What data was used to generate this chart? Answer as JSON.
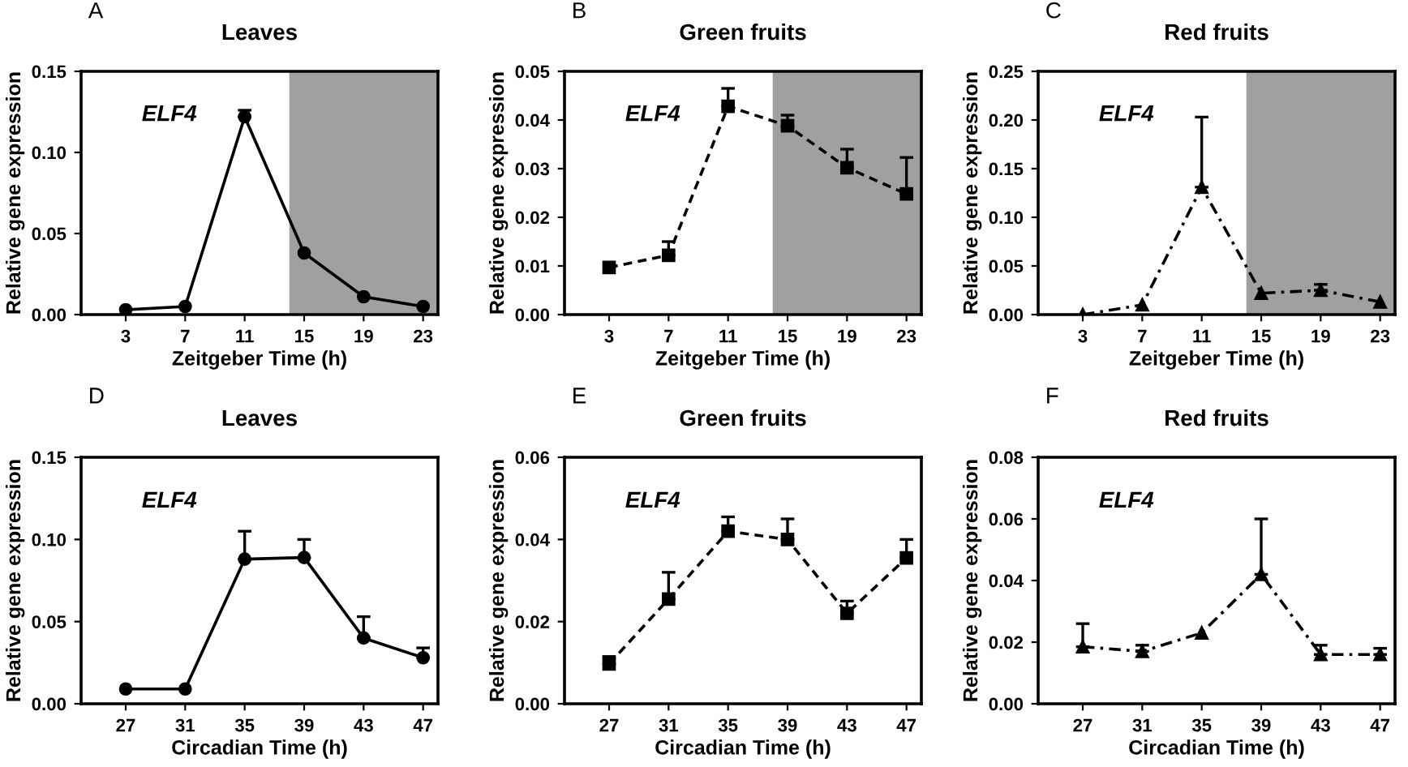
{
  "chart_data": [
    {
      "type": "line",
      "title": "Leaves",
      "xlabel": "Zeitgeber Time (h)",
      "ylabel": "Relative gene expression",
      "annotations": [
        "A",
        "ELF4"
      ],
      "x": [
        3,
        7,
        11,
        15,
        19,
        23
      ],
      "xlim": [
        0,
        24
      ],
      "xticks": [
        3,
        7,
        11,
        15,
        19,
        23
      ],
      "ylim": [
        0,
        0.15
      ],
      "yticks": [
        {
          "value": 0,
          "label": "0.00"
        },
        {
          "value": 0.05,
          "label": "0.05"
        },
        {
          "value": 0.1,
          "label": "0.10"
        },
        {
          "value": 0.15,
          "label": "0.15"
        }
      ],
      "marker": "circle",
      "line_style": "solid",
      "series": [
        {
          "color": "#000000",
          "values": [
            0.003,
            0.005,
            0.122,
            0.038,
            0.011,
            0.005
          ],
          "errors": [
            null,
            null,
            [
              0.122,
              0.126
            ],
            null,
            null,
            null
          ]
        }
      ],
      "bands": [
        {
          "axis": "x",
          "from": 14,
          "to": 24,
          "color": "#a0a0a0"
        }
      ],
      "grid": false,
      "legend": false
    },
    {
      "type": "line",
      "title": "Green fruits",
      "xlabel": "Zeitgeber Time (h)",
      "ylabel": "Relative gene expression",
      "annotations": [
        "B",
        "ELF4"
      ],
      "x": [
        3,
        7,
        11,
        15,
        19,
        23
      ],
      "xlim": [
        0,
        24
      ],
      "xticks": [
        3,
        7,
        11,
        15,
        19,
        23
      ],
      "ylim": [
        0,
        0.05
      ],
      "yticks": [
        {
          "value": 0,
          "label": "0.00"
        },
        {
          "value": 0.01,
          "label": "0.01"
        },
        {
          "value": 0.02,
          "label": "0.02"
        },
        {
          "value": 0.03,
          "label": "0.03"
        },
        {
          "value": 0.04,
          "label": "0.04"
        },
        {
          "value": 0.05,
          "label": "0.05"
        }
      ],
      "marker": "square",
      "line_style": "dashed",
      "series": [
        {
          "color": "#000000",
          "values": [
            0.0097,
            0.0122,
            0.0428,
            0.0388,
            0.0302,
            0.0248
          ],
          "errors": [
            null,
            [
              0.0122,
              0.015
            ],
            [
              0.0428,
              0.0465
            ],
            [
              0.0388,
              0.041
            ],
            [
              0.0302,
              0.034
            ],
            [
              0.0248,
              0.0323
            ]
          ]
        }
      ],
      "bands": [
        {
          "axis": "x",
          "from": 14,
          "to": 24,
          "color": "#a0a0a0"
        }
      ],
      "grid": false,
      "legend": false
    },
    {
      "type": "line",
      "title": "Red fruits",
      "xlabel": "Zeitgeber Time (h)",
      "ylabel": "Relative gene expression",
      "annotations": [
        "C",
        "ELF4"
      ],
      "x": [
        3,
        7,
        11,
        15,
        19,
        23
      ],
      "xlim": [
        0,
        24
      ],
      "xticks": [
        3,
        7,
        11,
        15,
        19,
        23
      ],
      "ylim": [
        0,
        0.25
      ],
      "yticks": [
        {
          "value": 0,
          "label": "0.00"
        },
        {
          "value": 0.05,
          "label": "0.05"
        },
        {
          "value": 0.1,
          "label": "0.10"
        },
        {
          "value": 0.15,
          "label": "0.15"
        },
        {
          "value": 0.2,
          "label": "0.20"
        },
        {
          "value": 0.25,
          "label": "0.25"
        }
      ],
      "marker": "triangle",
      "line_style": "dashdot",
      "series": [
        {
          "color": "#000000",
          "values": [
            0.0,
            0.01,
            0.131,
            0.022,
            0.025,
            0.013
          ],
          "errors": [
            null,
            null,
            [
              0.131,
              0.203
            ],
            null,
            [
              0.025,
              0.031
            ],
            null
          ]
        }
      ],
      "bands": [
        {
          "axis": "x",
          "from": 14,
          "to": 24,
          "color": "#a0a0a0"
        }
      ],
      "grid": false,
      "legend": false
    },
    {
      "type": "line",
      "title": "Leaves",
      "xlabel": "Circadian Time (h)",
      "ylabel": "Relative gene expression",
      "annotations": [
        "D",
        "ELF4"
      ],
      "x": [
        27,
        31,
        35,
        39,
        43,
        47
      ],
      "xlim": [
        24,
        48
      ],
      "xticks": [
        27,
        31,
        35,
        39,
        43,
        47
      ],
      "ylim": [
        0,
        0.15
      ],
      "yticks": [
        {
          "value": 0,
          "label": "0.00"
        },
        {
          "value": 0.05,
          "label": "0.05"
        },
        {
          "value": 0.1,
          "label": "0.10"
        },
        {
          "value": 0.15,
          "label": "0.15"
        }
      ],
      "marker": "circle",
      "line_style": "solid",
      "series": [
        {
          "color": "#000000",
          "values": [
            0.009,
            0.009,
            0.088,
            0.089,
            0.04,
            0.028
          ],
          "errors": [
            null,
            null,
            [
              0.088,
              0.105
            ],
            [
              0.089,
              0.1
            ],
            [
              0.04,
              0.053
            ],
            [
              0.028,
              0.034
            ]
          ]
        }
      ],
      "grid": false,
      "legend": false
    },
    {
      "type": "line",
      "title": "Green fruits",
      "xlabel": "Circadian Time (h)",
      "ylabel": "Relative gene expression",
      "annotations": [
        "E",
        "ELF4"
      ],
      "x": [
        27,
        31,
        35,
        39,
        43,
        47
      ],
      "xlim": [
        24,
        48
      ],
      "xticks": [
        27,
        31,
        35,
        39,
        43,
        47
      ],
      "ylim": [
        0,
        0.06
      ],
      "yticks": [
        {
          "value": 0,
          "label": "0.00"
        },
        {
          "value": 0.02,
          "label": "0.02"
        },
        {
          "value": 0.04,
          "label": "0.04"
        },
        {
          "value": 0.06,
          "label": "0.06"
        }
      ],
      "marker": "square",
      "line_style": "dashed",
      "series": [
        {
          "color": "#000000",
          "values": [
            0.0097,
            0.0255,
            0.042,
            0.04,
            0.022,
            0.0355
          ],
          "errors": [
            [
              0.0097,
              0.0115
            ],
            [
              0.0255,
              0.032
            ],
            [
              0.042,
              0.0455
            ],
            [
              0.04,
              0.045
            ],
            [
              0.022,
              0.025
            ],
            [
              0.0355,
              0.04
            ]
          ]
        }
      ],
      "grid": false,
      "legend": false
    },
    {
      "type": "line",
      "title": "Red fruits",
      "xlabel": "Circadian Time (h)",
      "ylabel": "Relative gene expression",
      "annotations": [
        "F",
        "ELF4"
      ],
      "x": [
        27,
        31,
        35,
        39,
        43,
        47
      ],
      "xlim": [
        24,
        48
      ],
      "xticks": [
        27,
        31,
        35,
        39,
        43,
        47
      ],
      "ylim": [
        0,
        0.08
      ],
      "yticks": [
        {
          "value": 0,
          "label": "0.00"
        },
        {
          "value": 0.02,
          "label": "0.02"
        },
        {
          "value": 0.04,
          "label": "0.04"
        },
        {
          "value": 0.06,
          "label": "0.06"
        },
        {
          "value": 0.08,
          "label": "0.08"
        }
      ],
      "marker": "triangle",
      "line_style": "dashdot",
      "series": [
        {
          "color": "#000000",
          "values": [
            0.0185,
            0.017,
            0.023,
            0.042,
            0.016,
            0.016
          ],
          "errors": [
            [
              0.0185,
              0.026
            ],
            [
              0.017,
              0.019
            ],
            null,
            [
              0.042,
              0.06
            ],
            [
              0.016,
              0.019
            ],
            [
              0.016,
              0.018
            ]
          ]
        }
      ],
      "grid": false,
      "legend": false
    }
  ]
}
